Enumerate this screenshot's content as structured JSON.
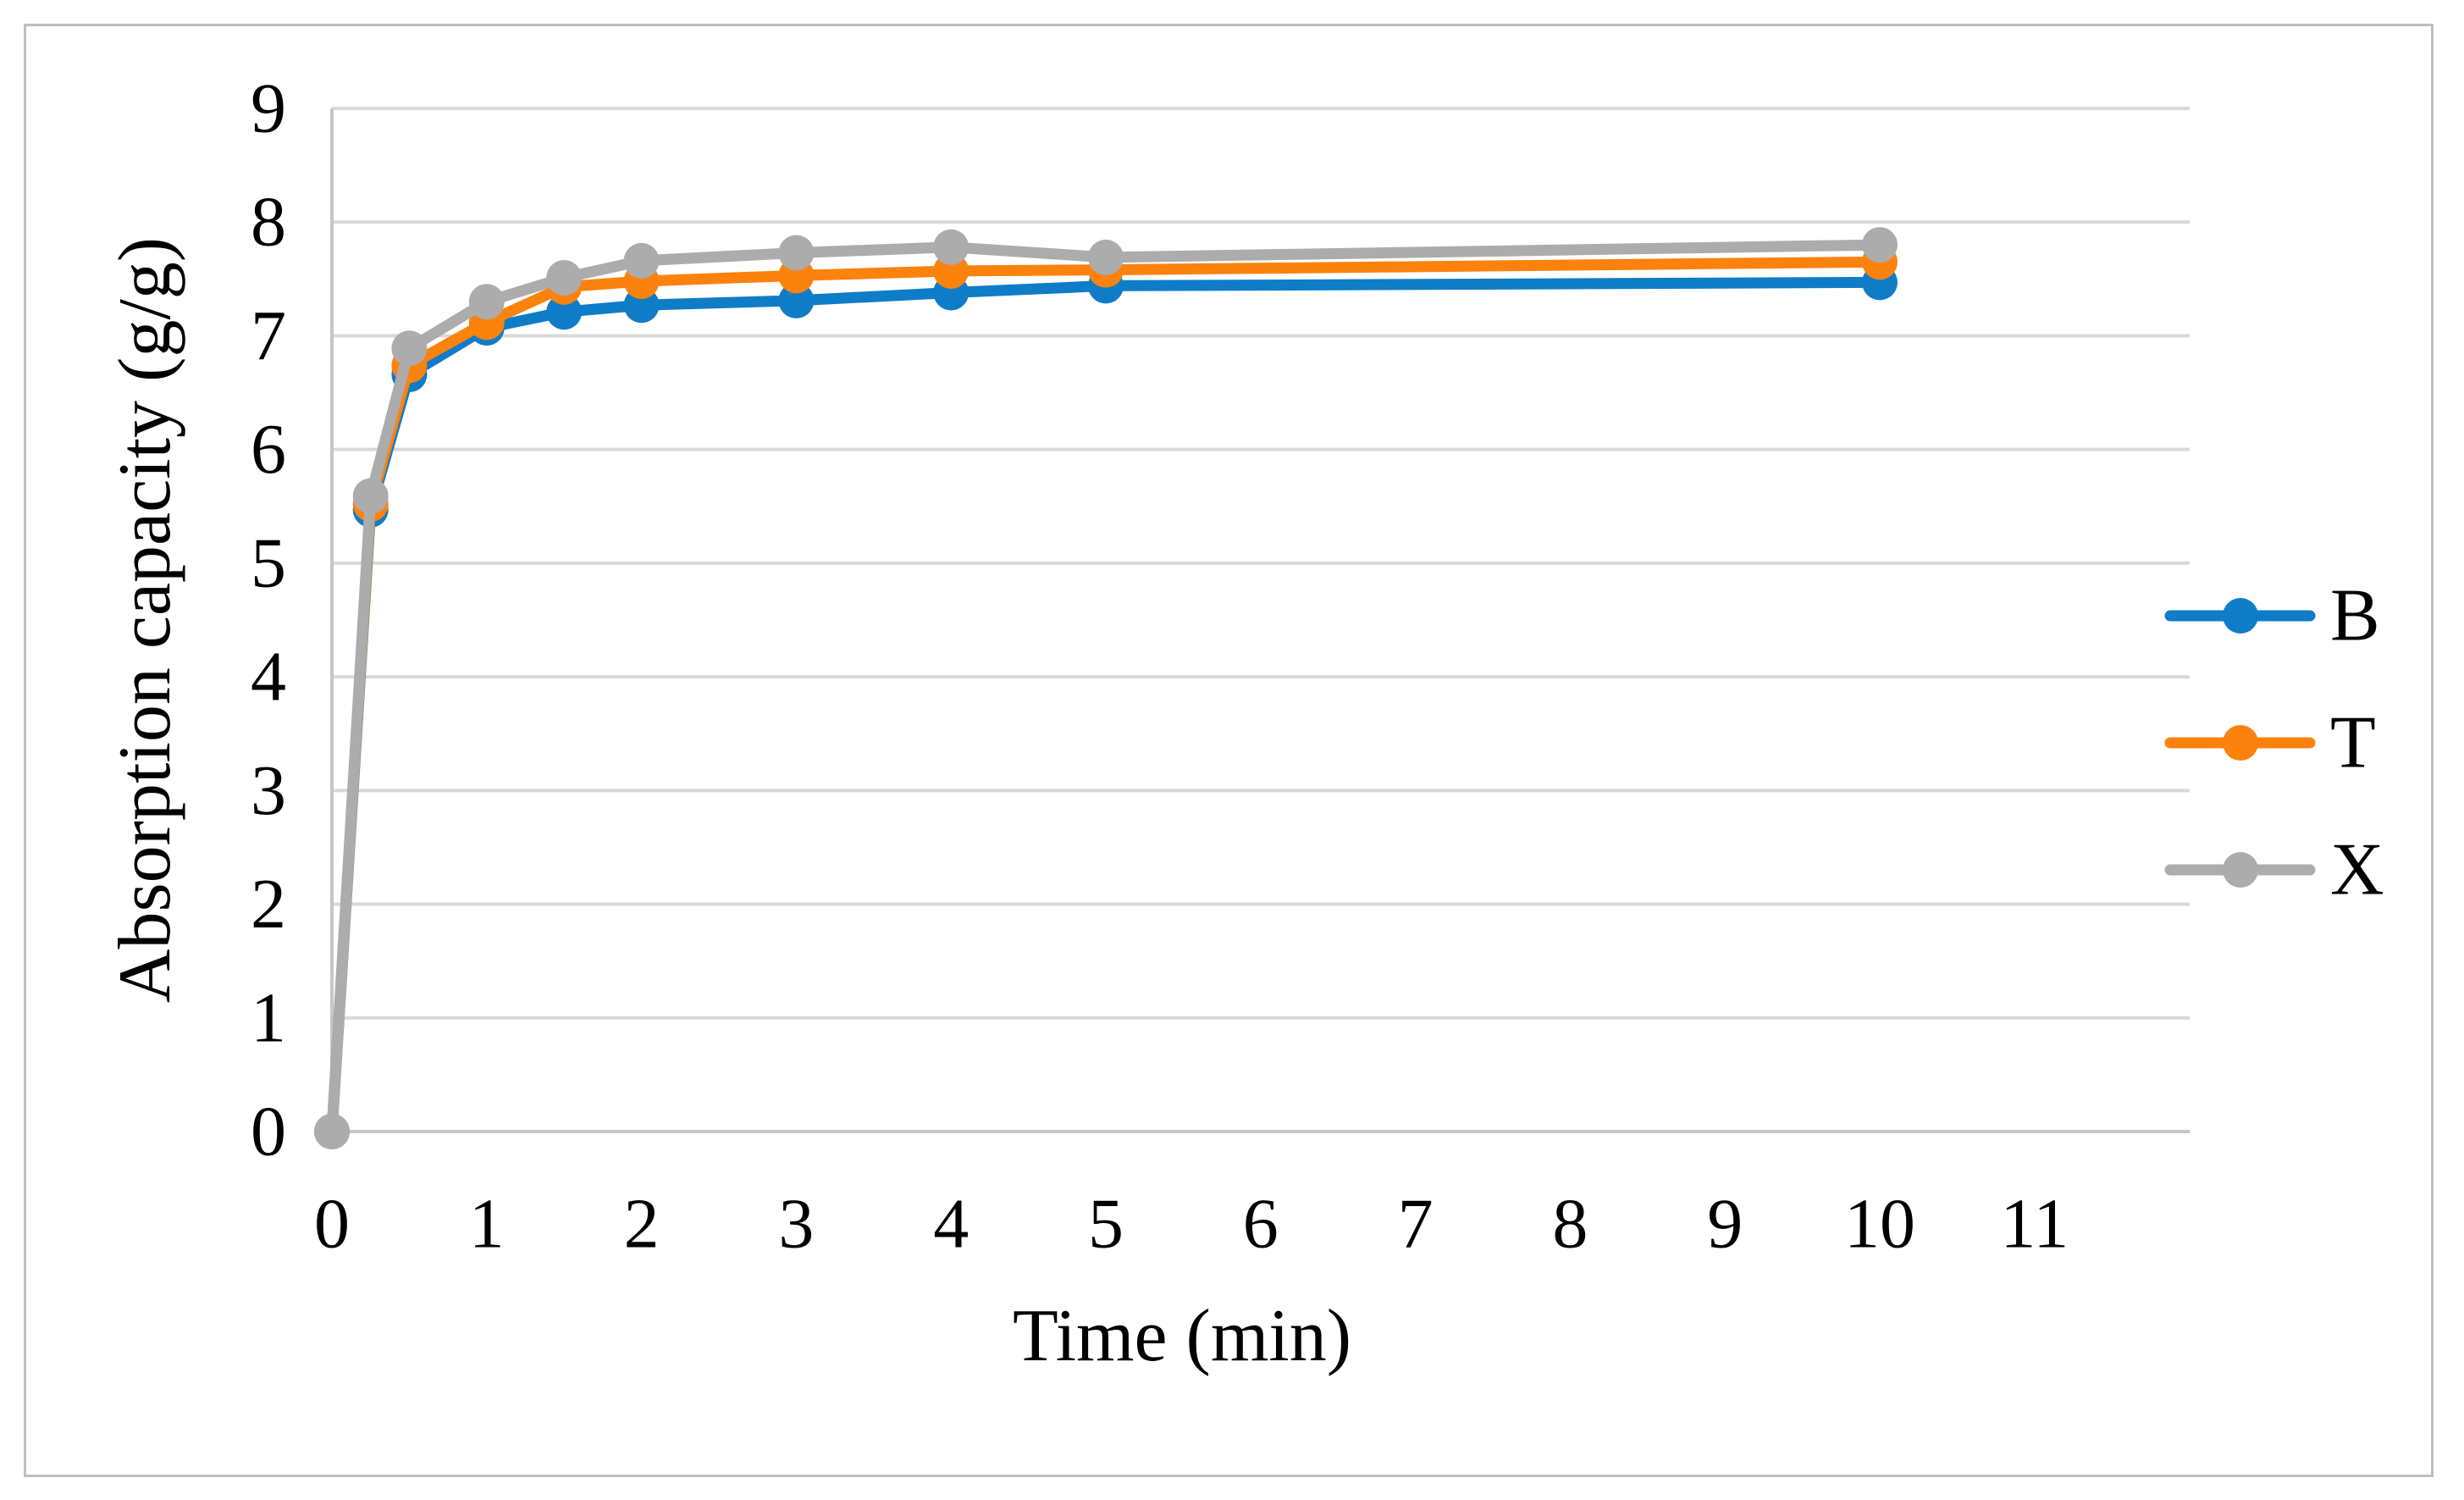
{
  "figure": {
    "background_color": "#FFFFFF",
    "border_color": "#BFBFBF"
  },
  "chart_data": {
    "type": "line",
    "title": "",
    "xlabel": "Time (min)",
    "ylabel": "Absorption capacity (g/g)",
    "x": [
      0,
      0.25,
      0.5,
      1,
      1.5,
      2,
      3,
      4,
      5,
      10
    ],
    "series": [
      {
        "name": "B",
        "color": "#0F7CC8",
        "values": [
          0,
          5.47,
          6.66,
          7.07,
          7.21,
          7.27,
          7.31,
          7.38,
          7.44,
          7.47
        ]
      },
      {
        "name": "T",
        "color": "#FC820E",
        "values": [
          0,
          5.52,
          6.74,
          7.12,
          7.43,
          7.48,
          7.53,
          7.57,
          7.58,
          7.65
        ]
      },
      {
        "name": "X",
        "color": "#ACACAC",
        "values": [
          0,
          5.59,
          6.89,
          7.3,
          7.51,
          7.66,
          7.73,
          7.78,
          7.69,
          7.8
        ]
      }
    ],
    "xlim": [
      0,
      12
    ],
    "ylim": [
      0,
      9
    ],
    "x_ticks": [
      "0",
      "1",
      "2",
      "3",
      "4",
      "5",
      "6",
      "7",
      "8",
      "9",
      "10",
      "11"
    ],
    "y_ticks": [
      "0",
      "1",
      "2",
      "3",
      "4",
      "5",
      "6",
      "7",
      "8",
      "9"
    ],
    "grid": "horizontal",
    "gridline_color": "#D9D9D9",
    "axis_line_color": "#C6C6C6",
    "marker": "circle",
    "legend_position": "right",
    "legend_labels": [
      "B",
      "T",
      "X"
    ]
  }
}
